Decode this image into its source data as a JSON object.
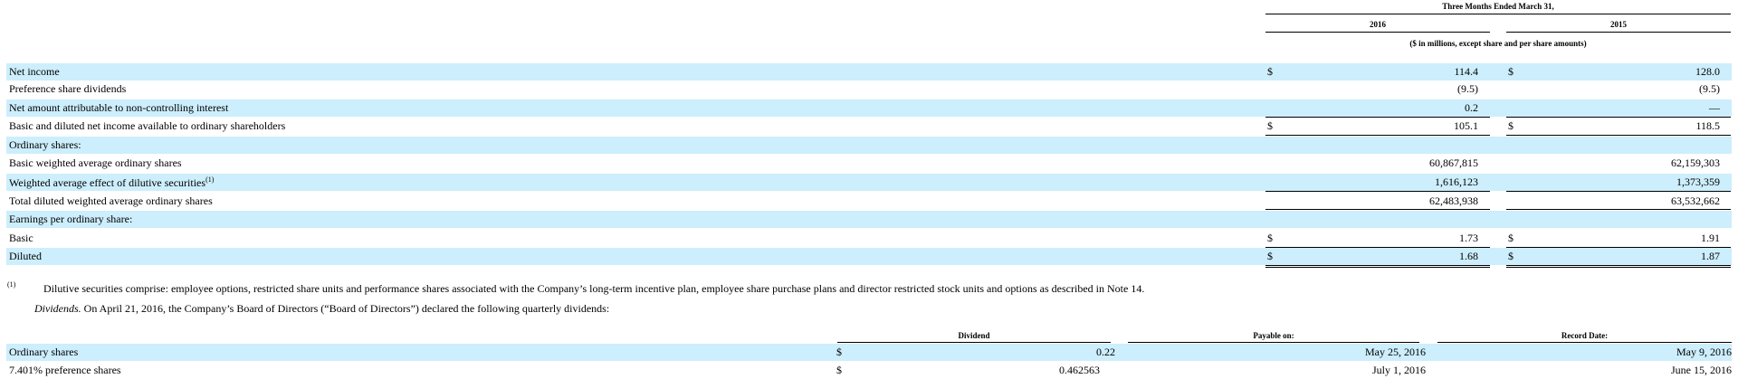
{
  "eps_table": {
    "period_header": "Three Months Ended March 31,",
    "col_2016": "2016",
    "col_2015": "2015",
    "units_note": "($ in millions, except share and per share amounts)",
    "rows": [
      {
        "label": "Net income",
        "cur2016": "$",
        "v2016": "114.4",
        "cur2015": "$",
        "v2015": "128.0"
      },
      {
        "label": "Preference share dividends",
        "cur2016": "",
        "v2016": "(9.5)",
        "cur2015": "",
        "v2015": "(9.5)"
      },
      {
        "label": "Net amount attributable to non-controlling interest",
        "cur2016": "",
        "v2016": "0.2",
        "cur2015": "",
        "v2015": "—"
      },
      {
        "label": "Basic and diluted net income available to ordinary shareholders",
        "cur2016": "$",
        "v2016": "105.1",
        "cur2015": "$",
        "v2015": "118.5"
      },
      {
        "label": "Ordinary shares:",
        "cur2016": "",
        "v2016": "",
        "cur2015": "",
        "v2015": ""
      },
      {
        "label": "Basic weighted average ordinary shares",
        "cur2016": "",
        "v2016": "60,867,815",
        "cur2015": "",
        "v2015": "62,159,303"
      },
      {
        "label": "Weighted average effect of dilutive securities",
        "sup": "(1)",
        "cur2016": "",
        "v2016": "1,616,123",
        "cur2015": "",
        "v2015": "1,373,359"
      },
      {
        "label": "Total diluted weighted average ordinary shares",
        "cur2016": "",
        "v2016": "62,483,938",
        "cur2015": "",
        "v2015": "63,532,662"
      },
      {
        "label": "Earnings per ordinary share:",
        "cur2016": "",
        "v2016": "",
        "cur2015": "",
        "v2015": ""
      },
      {
        "label": "Basic",
        "cur2016": "$",
        "v2016": "1.73",
        "cur2015": "$",
        "v2015": "1.91"
      },
      {
        "label": "Diluted",
        "cur2016": "$",
        "v2016": "1.68",
        "cur2015": "$",
        "v2015": "1.87"
      }
    ]
  },
  "footnote": {
    "marker": "(1)",
    "text": "Dilutive securities comprise: employee options, restricted share units and performance shares associated with the Company’s long-term incentive plan, employee share purchase plans and director restricted stock units and options as described in Note 14."
  },
  "dividends_paragraph": {
    "heading": "Dividends.",
    "text": " On April 21, 2016, the Company’s Board of Directors (“Board of Directors”) declared the following quarterly dividends:"
  },
  "dividends_table": {
    "col_dividend": "Dividend",
    "col_payable": "Payable on:",
    "col_record": "Record Date:",
    "rows": [
      {
        "label": "Ordinary shares",
        "cur": "$",
        "dividend": "0.22",
        "payable": "May 25, 2016",
        "record": "May 9, 2016"
      },
      {
        "label": "7.401% preference shares",
        "cur": "$",
        "dividend": "0.462563",
        "payable": "July 1, 2016",
        "record": "June 15, 2016"
      }
    ]
  }
}
